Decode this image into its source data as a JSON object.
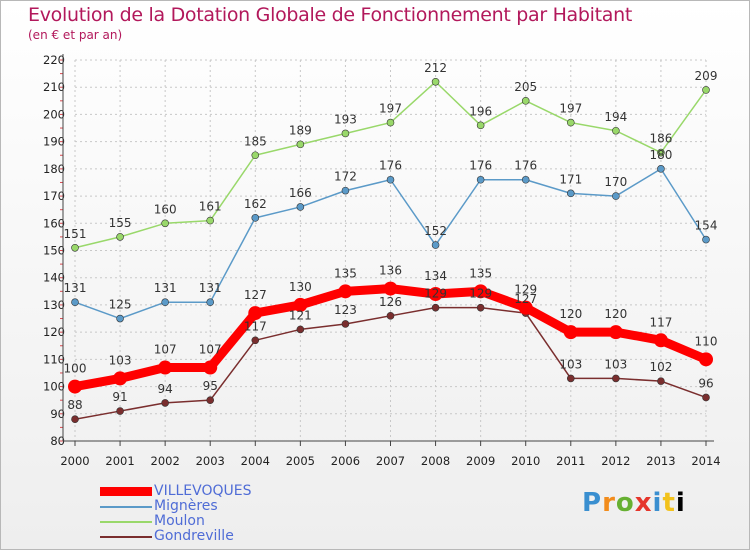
{
  "title": "Evolution de la Dotation Globale de Fonctionnement par Habitant",
  "subtitle": "(en € et par an)",
  "logo_text": "Proxiti",
  "colors": {
    "grid": "#c8c8c8",
    "axis": "#444444",
    "title": "#b2185b",
    "legend_text": "#4f6cd6"
  },
  "chart_data": {
    "type": "line",
    "title": "Evolution de la Dotation Globale de Fonctionnement par Habitant",
    "subtitle": "(en € et par an)",
    "xlabel": "",
    "ylabel": "",
    "ylim": [
      80,
      220
    ],
    "yticks": [
      80,
      90,
      100,
      110,
      120,
      130,
      140,
      150,
      160,
      170,
      180,
      190,
      200,
      210,
      220
    ],
    "x": [
      "2000",
      "2001",
      "2002",
      "2003",
      "2004",
      "2005",
      "2006",
      "2007",
      "2008",
      "2009",
      "2010",
      "2011",
      "2012",
      "2013",
      "2014"
    ],
    "grid": true,
    "legend_position": "bottom-left",
    "series": [
      {
        "name": "VILLEVOQUES",
        "color": "#ff0000",
        "emphasis": true,
        "values": [
          100,
          103,
          107,
          107,
          127,
          130,
          135,
          136,
          134,
          135,
          129,
          120,
          120,
          117,
          110
        ]
      },
      {
        "name": "Mignères",
        "color": "#5b9ac8",
        "values": [
          131,
          125,
          131,
          131,
          162,
          166,
          172,
          176,
          152,
          176,
          176,
          171,
          170,
          180,
          154
        ]
      },
      {
        "name": "Moulon",
        "color": "#99d86a",
        "values": [
          151,
          155,
          160,
          161,
          185,
          189,
          193,
          197,
          212,
          196,
          205,
          197,
          194,
          186,
          209
        ]
      },
      {
        "name": "Gondreville",
        "color": "#7a2e2e",
        "values": [
          88,
          91,
          94,
          95,
          117,
          121,
          123,
          126,
          129,
          129,
          127,
          103,
          103,
          102,
          96
        ]
      }
    ]
  }
}
